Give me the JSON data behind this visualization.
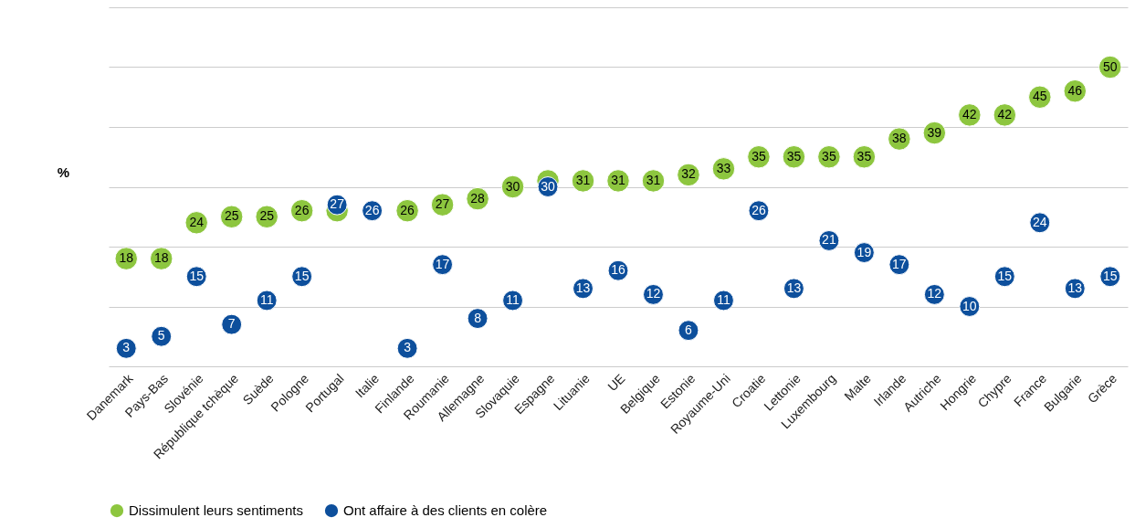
{
  "chart_data": {
    "type": "scatter",
    "ylabel": "%",
    "categories": [
      "Danemark",
      "Pays-Bas",
      "Slovénie",
      "République tchèque",
      "Suède",
      "Pologne",
      "Portugal",
      "Italie",
      "Finlande",
      "Roumanie",
      "Allemagne",
      "Slovaquie",
      "Espagne",
      "Lituanie",
      "UE",
      "Belgique",
      "Estonie",
      "Royaume-Uni",
      "Croatie",
      "Lettonie",
      "Luxembourg",
      "Malte",
      "Irlande",
      "Autriche",
      "Hongrie",
      "Chypre",
      "France",
      "Bulgarie",
      "Grèce"
    ],
    "series": [
      {
        "name": "Dissimulent leurs sentiments",
        "color": "#8dc63f",
        "values": [
          18,
          18,
          24,
          25,
          25,
          26,
          26,
          null,
          26,
          27,
          28,
          30,
          31,
          31,
          31,
          31,
          32,
          33,
          35,
          35,
          35,
          35,
          38,
          39,
          42,
          42,
          45,
          46,
          50
        ],
        "value_labels": [
          "18",
          "18",
          "24",
          "25",
          "25",
          "26",
          null,
          null,
          "26",
          "27",
          "28",
          "30",
          null,
          "31",
          "31",
          "31",
          "32",
          "33",
          "35",
          "35",
          "35",
          "35",
          "38",
          "39",
          "42",
          "42",
          "45",
          "46",
          "50"
        ]
      },
      {
        "name": "Ont affaire à des clients en colère",
        "color": "#0d4f9c",
        "values": [
          3,
          5,
          15,
          7,
          11,
          15,
          27,
          26,
          3,
          17,
          8,
          11,
          30,
          13,
          16,
          12,
          6,
          11,
          26,
          13,
          21,
          19,
          17,
          12,
          10,
          15,
          24,
          13,
          15
        ],
        "value_labels": [
          "3",
          "5",
          "15",
          "7",
          "11",
          "15",
          "27",
          "26",
          "3",
          "17",
          "8",
          "11",
          "30",
          "13",
          "16",
          "12",
          "6",
          "11",
          "26",
          "13",
          "21",
          "19",
          "17",
          "12",
          "10",
          "15",
          "24",
          "13",
          "15"
        ]
      }
    ],
    "ylim": [
      0,
      60
    ],
    "yticks": [
      {
        "value": 0,
        "label": null
      },
      {
        "value": 10,
        "label": null
      },
      {
        "value": 20,
        "label": null
      },
      {
        "value": 30,
        "label": null
      },
      {
        "value": 40,
        "label": null
      },
      {
        "value": 50,
        "label": null
      },
      {
        "value": 60,
        "label": null
      }
    ],
    "tick_labels": "x",
    "grid": "y",
    "legend": "bottom",
    "marker": "circle"
  }
}
